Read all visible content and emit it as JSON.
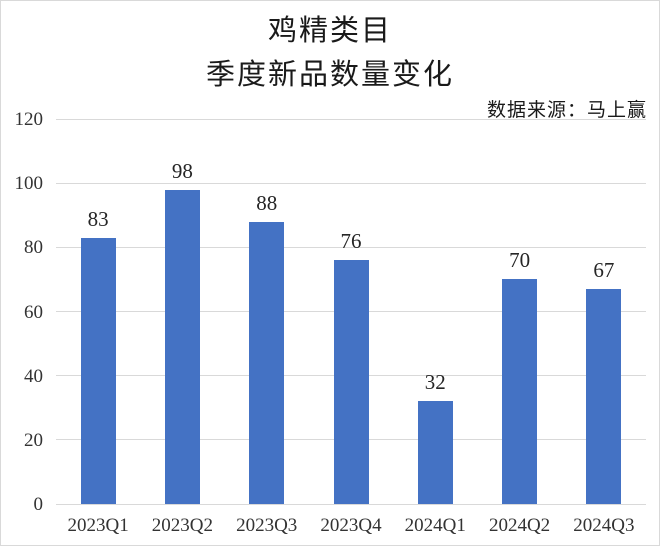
{
  "chart": {
    "title_line1": "鸡精类目",
    "title_line2": "季度新品数量变化",
    "source": "数据来源：马上赢"
  },
  "chart_data": {
    "type": "bar",
    "title": "鸡精类目",
    "subtitle": "季度新品数量变化",
    "source_annotation": "数据来源：马上赢",
    "categories": [
      "2023Q1",
      "2023Q2",
      "2023Q3",
      "2023Q4",
      "2024Q1",
      "2024Q2",
      "2024Q3"
    ],
    "values": [
      83,
      98,
      88,
      76,
      32,
      70,
      67
    ],
    "xlabel": "",
    "ylabel": "",
    "ylim": [
      0,
      120
    ],
    "yticks": [
      0,
      20,
      40,
      60,
      80,
      100,
      120
    ],
    "grid": true,
    "legend": false,
    "bar_color": "#4472C4",
    "gridline_color": "#D9D9D9",
    "text_color": "#262626"
  }
}
